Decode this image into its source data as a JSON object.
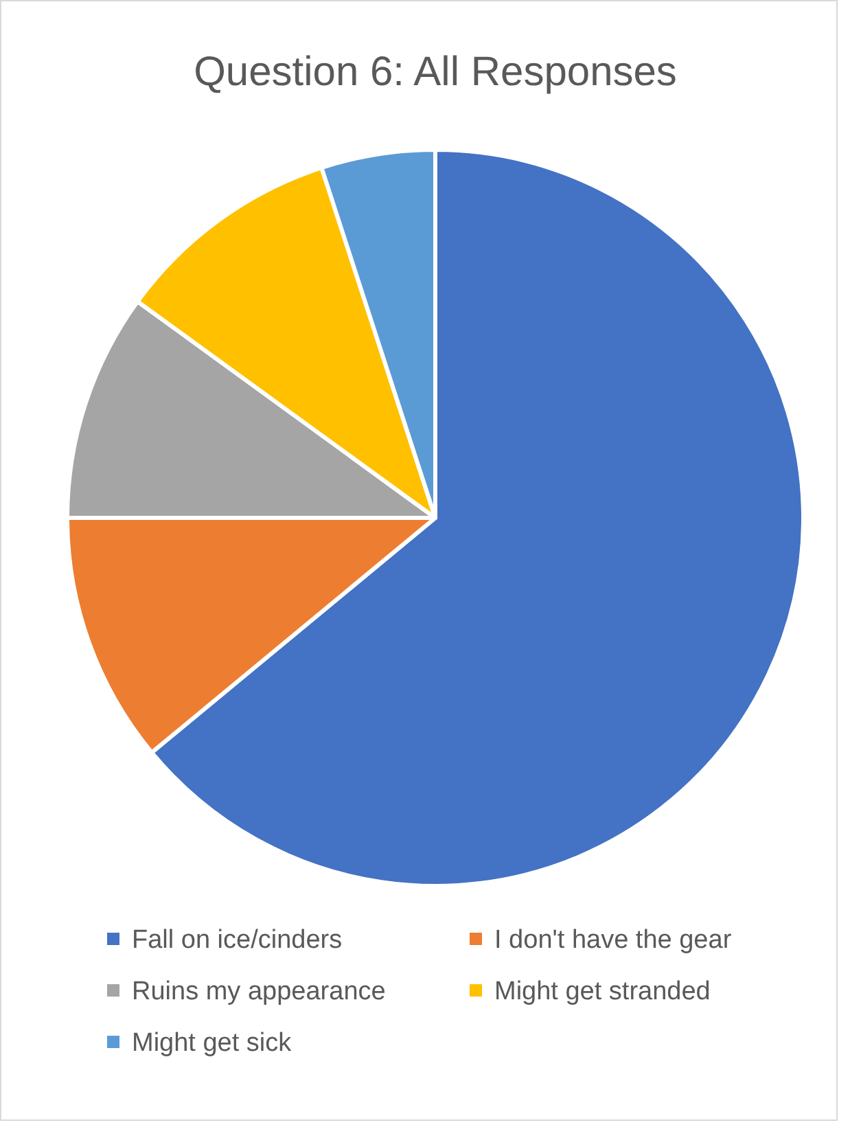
{
  "chart_data": {
    "type": "pie",
    "title": "Question 6: All Responses",
    "categories": [
      "Fall on ice/cinders",
      "I don't have the gear",
      "Ruins my appearance",
      "Might get stranded",
      "Might get sick"
    ],
    "values": [
      64,
      11,
      10,
      10,
      5
    ],
    "colors": [
      "#4472c4",
      "#ed7d31",
      "#a5a5a5",
      "#ffc000",
      "#5b9bd5"
    ],
    "legend": "bottom"
  }
}
